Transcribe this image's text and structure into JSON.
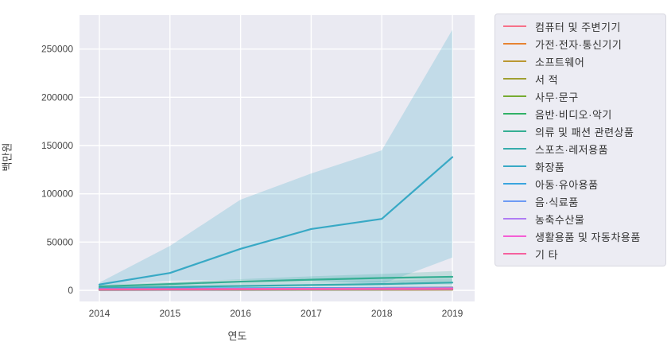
{
  "chart_data": {
    "type": "line",
    "title": "",
    "xlabel": "연도",
    "ylabel": "백만원",
    "x": [
      2014,
      2015,
      2016,
      2017,
      2018,
      2019
    ],
    "xtick_labels": [
      "2014",
      "2015",
      "2016",
      "2017",
      "2018",
      "2019"
    ],
    "yticks": [
      0,
      50000,
      100000,
      150000,
      200000,
      250000
    ],
    "ytick_labels": [
      "0",
      "50000",
      "100000",
      "150000",
      "200000",
      "250000"
    ],
    "ylim": [
      -11500,
      285000
    ],
    "grid": true,
    "legend_position": "right",
    "plot_bg_color": "#eaeaf2",
    "grid_color": "#ffffff",
    "series": [
      {
        "name": "컴퓨터 및 주변기기",
        "color": "#f77189",
        "values": [
          1500,
          1700,
          1900,
          2100,
          2300,
          2600
        ]
      },
      {
        "name": "가전·전자·통신기기",
        "color": "#e68332",
        "values": [
          1200,
          1500,
          1800,
          2100,
          2500,
          3000
        ]
      },
      {
        "name": "소프트웨어",
        "color": "#bb9832",
        "values": [
          300,
          350,
          400,
          450,
          500,
          600
        ]
      },
      {
        "name": "서 적",
        "color": "#a0a031",
        "values": [
          900,
          950,
          1000,
          1050,
          1100,
          1200
        ]
      },
      {
        "name": "사무·문구",
        "color": "#77ab31",
        "values": [
          500,
          550,
          600,
          650,
          700,
          800
        ]
      },
      {
        "name": "음반·비디오·악기",
        "color": "#31b166",
        "values": [
          400,
          500,
          600,
          700,
          800,
          1000
        ]
      },
      {
        "name": "의류 및 패션 관련상품",
        "color": "#35ae93",
        "values": [
          4000,
          6500,
          9000,
          11000,
          12800,
          14000
        ],
        "band_upper": [
          5500,
          8500,
          11500,
          14500,
          17000,
          20000
        ],
        "band_lower": [
          3000,
          4800,
          6500,
          8000,
          8500,
          7000
        ]
      },
      {
        "name": "스포츠·레저용품",
        "color": "#36acac",
        "values": [
          2500,
          3500,
          4500,
          5500,
          6500,
          8000
        ],
        "band_upper": [
          3500,
          5000,
          6500,
          8000,
          10000,
          12000
        ],
        "band_lower": [
          1800,
          2500,
          3200,
          4000,
          4500,
          5000
        ]
      },
      {
        "name": "화장품",
        "color": "#38a9c5",
        "values": [
          6000,
          18000,
          43000,
          63500,
          74000,
          138000
        ],
        "band_upper": [
          8000,
          46000,
          94000,
          121000,
          145000,
          270000
        ],
        "band_lower": [
          4500,
          10000,
          11000,
          10000,
          6500,
          34000
        ]
      },
      {
        "name": "아동·유아용품",
        "color": "#3aa5df",
        "values": [
          1800,
          2000,
          2200,
          2400,
          2600,
          2800
        ]
      },
      {
        "name": "음·식료품",
        "color": "#6e9bf4",
        "values": [
          1000,
          1200,
          1400,
          1600,
          1800,
          2000
        ]
      },
      {
        "name": "농축수산물",
        "color": "#b07cf4",
        "values": [
          600,
          700,
          800,
          900,
          1000,
          1100
        ]
      },
      {
        "name": "생활용품 및 자동차용품",
        "color": "#f45fd4",
        "values": [
          1100,
          1300,
          1500,
          1700,
          1900,
          2100
        ]
      },
      {
        "name": "기 타",
        "color": "#f5619e",
        "values": [
          800,
          900,
          1000,
          1100,
          1200,
          1300
        ]
      }
    ]
  }
}
